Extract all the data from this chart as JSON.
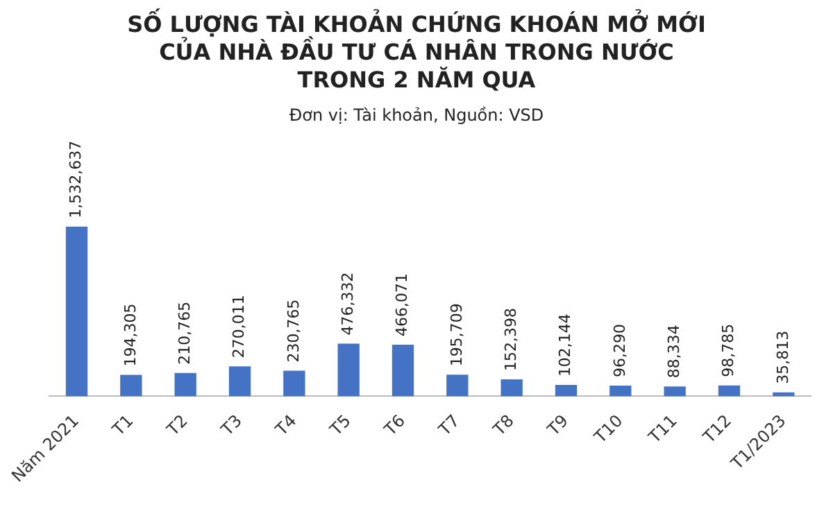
{
  "chart_data": {
    "type": "bar",
    "title": "SỐ LƯỢNG TÀI KHOẢN CHỨNG KHOÁN MỞ MỚI\nCỦA NHÀ ĐẦU TƯ CÁ NHÂN TRONG NƯỚC\nTRONG 2 NĂM QUA",
    "subtitle": "Đơn vị: Tài khoản, Nguồn: VSD",
    "categories": [
      "Năm 2021",
      "T1",
      "T2",
      "T3",
      "T4",
      "T5",
      "T6",
      "T7",
      "T8",
      "T9",
      "T10",
      "T11",
      "T12",
      "T1/2023"
    ],
    "values": [
      1532637,
      194305,
      210765,
      270011,
      230765,
      476332,
      466071,
      195709,
      152398,
      102144,
      96290,
      88334,
      98785,
      35813
    ],
    "value_labels": [
      "1,532,637",
      "194,305",
      "210,765",
      "270,011",
      "230,765",
      "476,332",
      "466,071",
      "195,709",
      "152,398",
      "102,144",
      "96,290",
      "88,334",
      "98,785",
      "35,813"
    ],
    "color": "#4472c4",
    "grid": false,
    "legend": false
  }
}
